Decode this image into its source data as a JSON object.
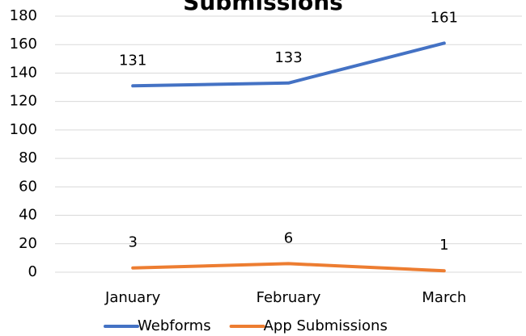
{
  "chart_data": {
    "type": "line",
    "title": "Submissions",
    "categories": [
      "January",
      "February",
      "March"
    ],
    "series": [
      {
        "name": "Webforms",
        "color": "#4472c4",
        "values": [
          131,
          133,
          161
        ]
      },
      {
        "name": "App Submissions",
        "color": "#ed7d31",
        "values": [
          3,
          6,
          1
        ]
      }
    ],
    "ylim": [
      0,
      180
    ],
    "yticks": [
      0,
      20,
      40,
      60,
      80,
      100,
      120,
      140,
      160,
      180
    ],
    "grid": true,
    "legend": "bottom"
  }
}
